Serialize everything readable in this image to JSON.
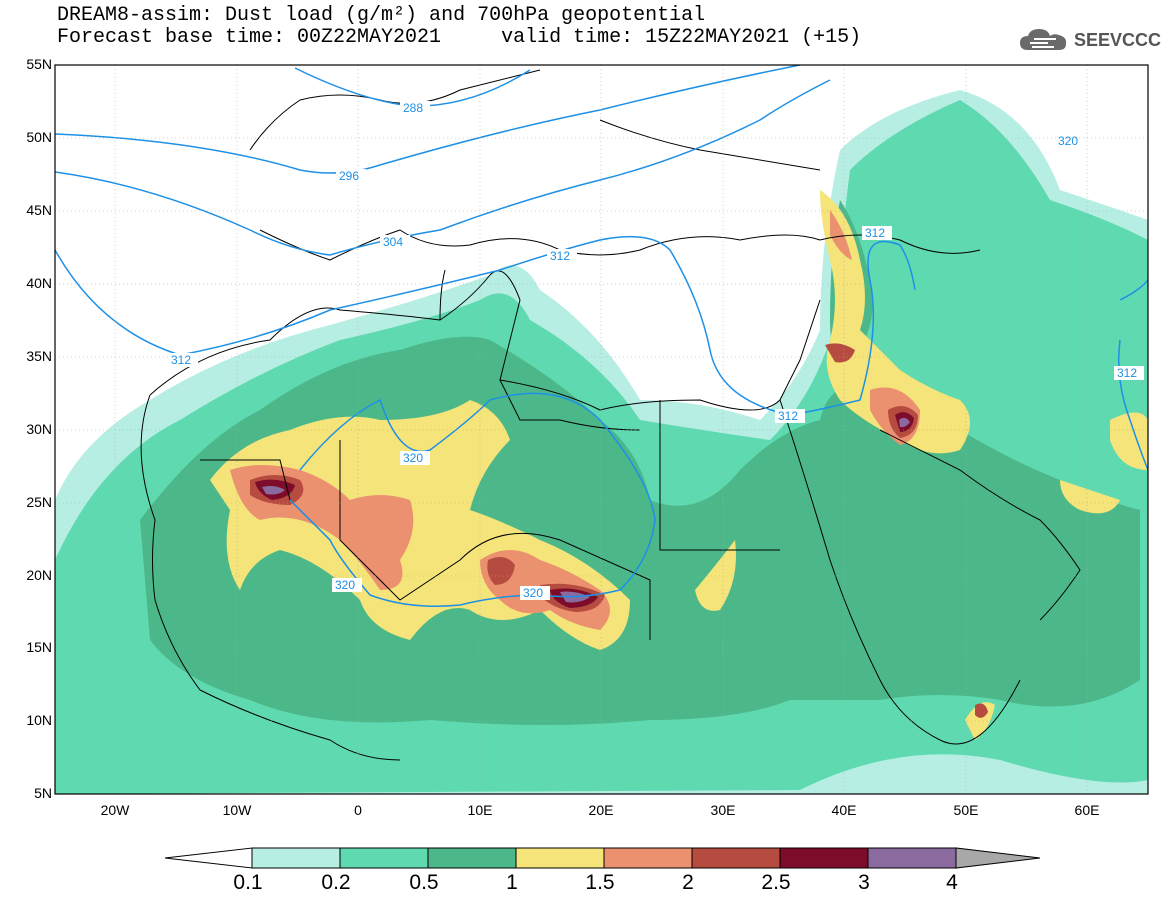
{
  "header": {
    "title_line1": "DREAM8-assim: Dust load (g/m²) and 700hPa geopotential",
    "title_line2": "Forecast base time: 00Z22MAY2021     valid time: 15Z22MAY2021 (+15)",
    "logo_text": "SEEVCCC"
  },
  "map": {
    "lat_labels": [
      "55N",
      "50N",
      "45N",
      "40N",
      "35N",
      "30N",
      "25N",
      "20N",
      "15N",
      "10N",
      "5N"
    ],
    "lon_labels": [
      "20W",
      "10W",
      "0",
      "10E",
      "20E",
      "30E",
      "40E",
      "50E",
      "60E"
    ],
    "lat_range": [
      5,
      55
    ],
    "lon_range": [
      -25,
      65
    ],
    "contour_labels": [
      "288",
      "296",
      "304",
      "312",
      "312",
      "312",
      "312",
      "312",
      "320",
      "320",
      "320",
      "320"
    ]
  },
  "colorbar": {
    "levels": [
      "0.1",
      "0.2",
      "0.5",
      "1",
      "1.5",
      "2",
      "2.5",
      "3",
      "4"
    ],
    "colors": [
      "#b7eee4",
      "#5fd9b0",
      "#4cb88a",
      "#f4e47a",
      "#ec9170",
      "#b54c3f",
      "#7c0c2a",
      "#8a6a9f"
    ],
    "over_color": "#a8a8a8"
  },
  "chart_data": {
    "type": "heatmap",
    "title": "DREAM8-assim: Dust load (g/m²) and 700hPa geopotential",
    "variable": "Dust load (g/m²)",
    "contour_variable": "700hPa geopotential",
    "contour_levels": [
      288,
      296,
      304,
      312,
      320
    ],
    "colorbar_levels": [
      0.1,
      0.2,
      0.5,
      1,
      1.5,
      2,
      2.5,
      3,
      4
    ],
    "lat_range": [
      5,
      55
    ],
    "lon_range": [
      -25,
      65
    ]
  }
}
